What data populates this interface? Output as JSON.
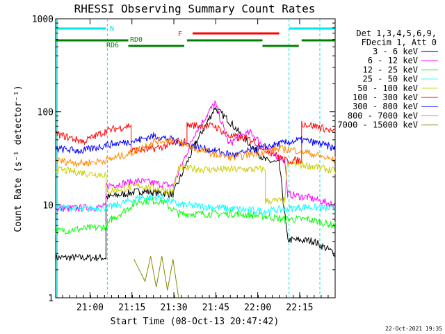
{
  "chart_data": {
    "type": "line",
    "title": "RHESSI Observing Summary Count Rates",
    "xlabel": "Start Time (08-Oct-13 20:47:42)",
    "ylabel": "Count Rate (s⁻¹ detector⁻¹)",
    "yscale": "log",
    "ylim": [
      1,
      1000
    ],
    "xlim_minutes": [
      0,
      100
    ],
    "x_ticks": [
      {
        "label": "21:00",
        "min": 12.3
      },
      {
        "label": "21:15",
        "min": 27.3
      },
      {
        "label": "21:30",
        "min": 42.3
      },
      {
        "label": "21:45",
        "min": 57.3
      },
      {
        "label": "22:00",
        "min": 72.3
      },
      {
        "label": "22:15",
        "min": 87.3
      }
    ],
    "y_ticks": [
      "1",
      "10",
      "100",
      "1000"
    ],
    "legend_header": [
      "Det 1,3,4,5,6,9,",
      "FDecim 1, Att 0"
    ],
    "legend_position": "right",
    "series": [
      {
        "name": "3 - 6 keV",
        "color": "#000000",
        "points": [
          [
            0,
            2.7
          ],
          [
            18,
            2.7
          ],
          [
            18,
            12
          ],
          [
            30,
            14
          ],
          [
            42,
            13
          ],
          [
            50,
            45
          ],
          [
            57,
            110
          ],
          [
            62,
            80
          ],
          [
            68,
            50
          ],
          [
            75,
            30
          ],
          [
            80,
            28
          ],
          [
            83,
            4.2
          ],
          [
            92,
            4.1
          ],
          [
            100,
            3.0
          ]
        ]
      },
      {
        "name": "6 - 12 keV",
        "color": "#ff00ff",
        "points": [
          [
            0,
            9
          ],
          [
            18,
            9.5
          ],
          [
            18,
            16
          ],
          [
            30,
            18
          ],
          [
            42,
            16
          ],
          [
            50,
            60
          ],
          [
            57,
            125
          ],
          [
            62,
            45
          ],
          [
            66,
            55
          ],
          [
            70,
            60
          ],
          [
            75,
            40
          ],
          [
            82,
            30
          ],
          [
            83,
            13
          ],
          [
            90,
            12
          ],
          [
            100,
            10
          ]
        ]
      },
      {
        "name": "12 - 25 keV",
        "color": "#00ff00",
        "points": [
          [
            0,
            5.2
          ],
          [
            18,
            5.8
          ],
          [
            20,
            7
          ],
          [
            30,
            11
          ],
          [
            38,
            11
          ],
          [
            44,
            8
          ],
          [
            55,
            8
          ],
          [
            65,
            8
          ],
          [
            75,
            7.5
          ],
          [
            82,
            7
          ],
          [
            90,
            7
          ],
          [
            100,
            6
          ]
        ]
      },
      {
        "name": "25 - 50 keV",
        "color": "#00ffff",
        "points": [
          [
            0,
            9.5
          ],
          [
            10,
            9
          ],
          [
            20,
            9.5
          ],
          [
            30,
            12
          ],
          [
            38,
            12
          ],
          [
            44,
            10
          ],
          [
            55,
            9.5
          ],
          [
            65,
            9
          ],
          [
            75,
            8.5
          ],
          [
            82,
            9
          ],
          [
            90,
            9.5
          ],
          [
            100,
            9
          ]
        ]
      },
      {
        "name": "50 - 100 keV",
        "color": "#cccc00",
        "points": [
          [
            0,
            24
          ],
          [
            10,
            22
          ],
          [
            18,
            21
          ],
          [
            18,
            14
          ],
          [
            30,
            16
          ],
          [
            42,
            14
          ],
          [
            44,
            25
          ],
          [
            55,
            24
          ],
          [
            60,
            24
          ],
          [
            75,
            24
          ],
          [
            75,
            11
          ],
          [
            82,
            11
          ],
          [
            83,
            28
          ],
          [
            92,
            26
          ],
          [
            100,
            23
          ]
        ]
      },
      {
        "name": "100 - 300 keV",
        "color": "#ff0000",
        "points": [
          [
            0,
            58
          ],
          [
            10,
            48
          ],
          [
            18,
            62
          ],
          [
            27,
            72
          ],
          [
            27,
            38
          ],
          [
            35,
            40
          ],
          [
            42,
            45
          ],
          [
            47,
            48
          ],
          [
            47,
            72
          ],
          [
            57,
            70
          ],
          [
            62,
            55
          ],
          [
            70,
            50
          ],
          [
            75,
            40
          ],
          [
            82,
            30
          ],
          [
            88,
            30
          ],
          [
            88,
            75
          ],
          [
            95,
            68
          ],
          [
            100,
            60
          ]
        ]
      },
      {
        "name": "300 - 800 keV",
        "color": "#0000ff",
        "points": [
          [
            0,
            40
          ],
          [
            10,
            38
          ],
          [
            18,
            44
          ],
          [
            27,
            48
          ],
          [
            30,
            50
          ],
          [
            35,
            55
          ],
          [
            42,
            50
          ],
          [
            50,
            42
          ],
          [
            57,
            38
          ],
          [
            64,
            34
          ],
          [
            72,
            40
          ],
          [
            80,
            45
          ],
          [
            88,
            50
          ],
          [
            95,
            45
          ],
          [
            100,
            40
          ]
        ]
      },
      {
        "name": "800 - 7000 keV",
        "color": "#ff8800",
        "points": [
          [
            0,
            30
          ],
          [
            10,
            28
          ],
          [
            18,
            30
          ],
          [
            27,
            36
          ],
          [
            35,
            48
          ],
          [
            42,
            50
          ],
          [
            50,
            40
          ],
          [
            57,
            35
          ],
          [
            64,
            32
          ],
          [
            72,
            36
          ],
          [
            80,
            40
          ],
          [
            88,
            38
          ],
          [
            95,
            33
          ],
          [
            100,
            30
          ]
        ]
      },
      {
        "name": "7000 - 15000 keV",
        "color": "#888800",
        "points": [
          [
            28,
            1
          ],
          [
            28,
            2.6
          ],
          [
            32,
            1.5
          ],
          [
            34,
            2.8
          ],
          [
            36,
            1.3
          ],
          [
            38,
            2.8
          ],
          [
            40,
            1.2
          ],
          [
            42,
            2.6
          ],
          [
            44,
            1
          ]
        ]
      }
    ],
    "attenuator_labels": {
      "N": "N",
      "RD0": "RD0",
      "RD6": "RD6",
      "F": "F"
    },
    "saa_markers_min": [
      18.5,
      83.5
    ]
  },
  "timestamp": "22-Oct-2021 19:35"
}
